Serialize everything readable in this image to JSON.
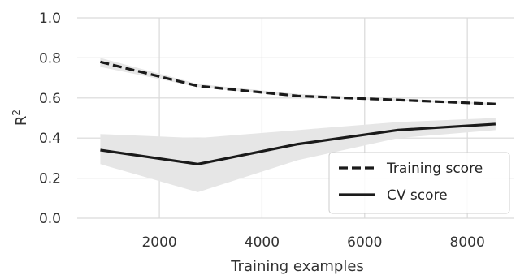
{
  "chart_data": {
    "type": "line",
    "title": "",
    "xlabel": "Training examples",
    "ylabel": "R",
    "ylabel_superscript": "2",
    "xlim": [
      400,
      8900
    ],
    "ylim": [
      0.0,
      1.0
    ],
    "xticks": [
      2000,
      4000,
      6000,
      8000
    ],
    "yticks": [
      0.0,
      0.2,
      0.4,
      0.6,
      0.8,
      1.0
    ],
    "ytick_labels": [
      "0.0",
      "0.2",
      "0.4",
      "0.6",
      "0.8",
      "1.0"
    ],
    "grid": true,
    "legend_position": "lower-right",
    "x": [
      850,
      2750,
      4700,
      6650,
      8550
    ],
    "series": [
      {
        "name": "Training score",
        "style": "dashed",
        "color": "#1a1a1a",
        "values": [
          0.78,
          0.66,
          0.61,
          0.59,
          0.57
        ],
        "band_upper": [
          0.8,
          0.67,
          0.62,
          0.595,
          0.575
        ],
        "band_lower": [
          0.755,
          0.655,
          0.605,
          0.585,
          0.565
        ]
      },
      {
        "name": "CV score",
        "style": "solid",
        "color": "#1a1a1a",
        "values": [
          0.34,
          0.27,
          0.37,
          0.44,
          0.47
        ],
        "band_upper": [
          0.42,
          0.4,
          0.44,
          0.48,
          0.5
        ],
        "band_lower": [
          0.27,
          0.13,
          0.29,
          0.4,
          0.44
        ]
      }
    ],
    "band_color": "#e6e6e6"
  }
}
